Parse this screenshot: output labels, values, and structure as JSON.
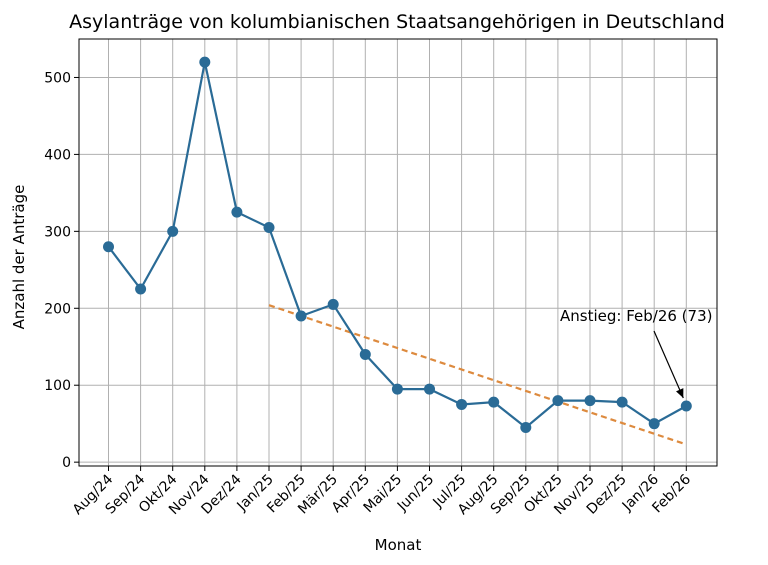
{
  "chart_data": {
    "type": "line",
    "title": "Asylanträge von kolumbianischen Staatsangehörigen in Deutschland",
    "xlabel": "Monat",
    "ylabel": "Anzahl der Anträge",
    "categories": [
      "Aug/24",
      "Sep/24",
      "Okt/24",
      "Nov/24",
      "Dez/24",
      "Jan/25",
      "Feb/25",
      "Mär/25",
      "Apr/25",
      "Mai/25",
      "Jun/25",
      "Jul/25",
      "Aug/25",
      "Sep/25",
      "Okt/25",
      "Nov/25",
      "Dez/25",
      "Jan/26",
      "Feb/26"
    ],
    "series": [
      {
        "values": [
          280,
          225,
          300,
          520,
          325,
          305,
          190,
          205,
          140,
          95,
          95,
          75,
          78,
          45,
          80,
          80,
          78,
          50,
          73
        ],
        "color": "#2a6b96",
        "marker": "circle"
      }
    ],
    "trend": {
      "from_category": "Jan/25",
      "to_category": "Feb/26",
      "from_value": 204,
      "to_value": 23,
      "color": "#dd8a3e",
      "style": "dashed"
    },
    "annotation": {
      "text": "Anstieg: Feb/26 (73)",
      "target_category": "Feb/26",
      "target_value": 73,
      "arrow": true
    },
    "y_ticks": [
      0,
      100,
      200,
      300,
      400,
      500
    ],
    "ylim": [
      -5,
      550
    ],
    "grid": true,
    "legend": "none"
  }
}
